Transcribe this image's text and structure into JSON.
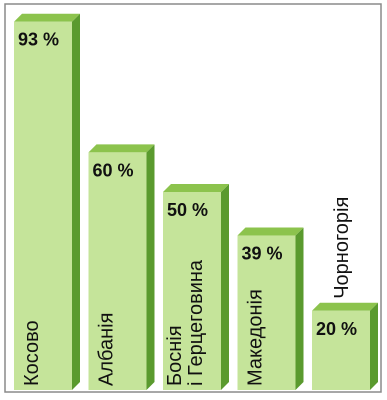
{
  "chart_data": {
    "type": "bar",
    "title": "",
    "xlabel": "",
    "ylabel": "",
    "ylim": [
      0,
      100
    ],
    "grid": false,
    "legend": "none",
    "unit": "%",
    "categories": [
      [
        "Косово"
      ],
      [
        "Албанія"
      ],
      [
        "Боснія",
        "і Герцеговина"
      ],
      [
        "Македонія"
      ],
      [
        "Чорногорія"
      ]
    ],
    "values": [
      93,
      60,
      50,
      39,
      20
    ],
    "value_labels": [
      "93 %",
      "60 %",
      "50 %",
      "39 %",
      "20 %"
    ],
    "colors": {
      "bar_front": "#c5e49a",
      "bar_top": "#8cc34d",
      "bar_side": "#5a9a2e",
      "frame": "#8a8a8a"
    }
  }
}
